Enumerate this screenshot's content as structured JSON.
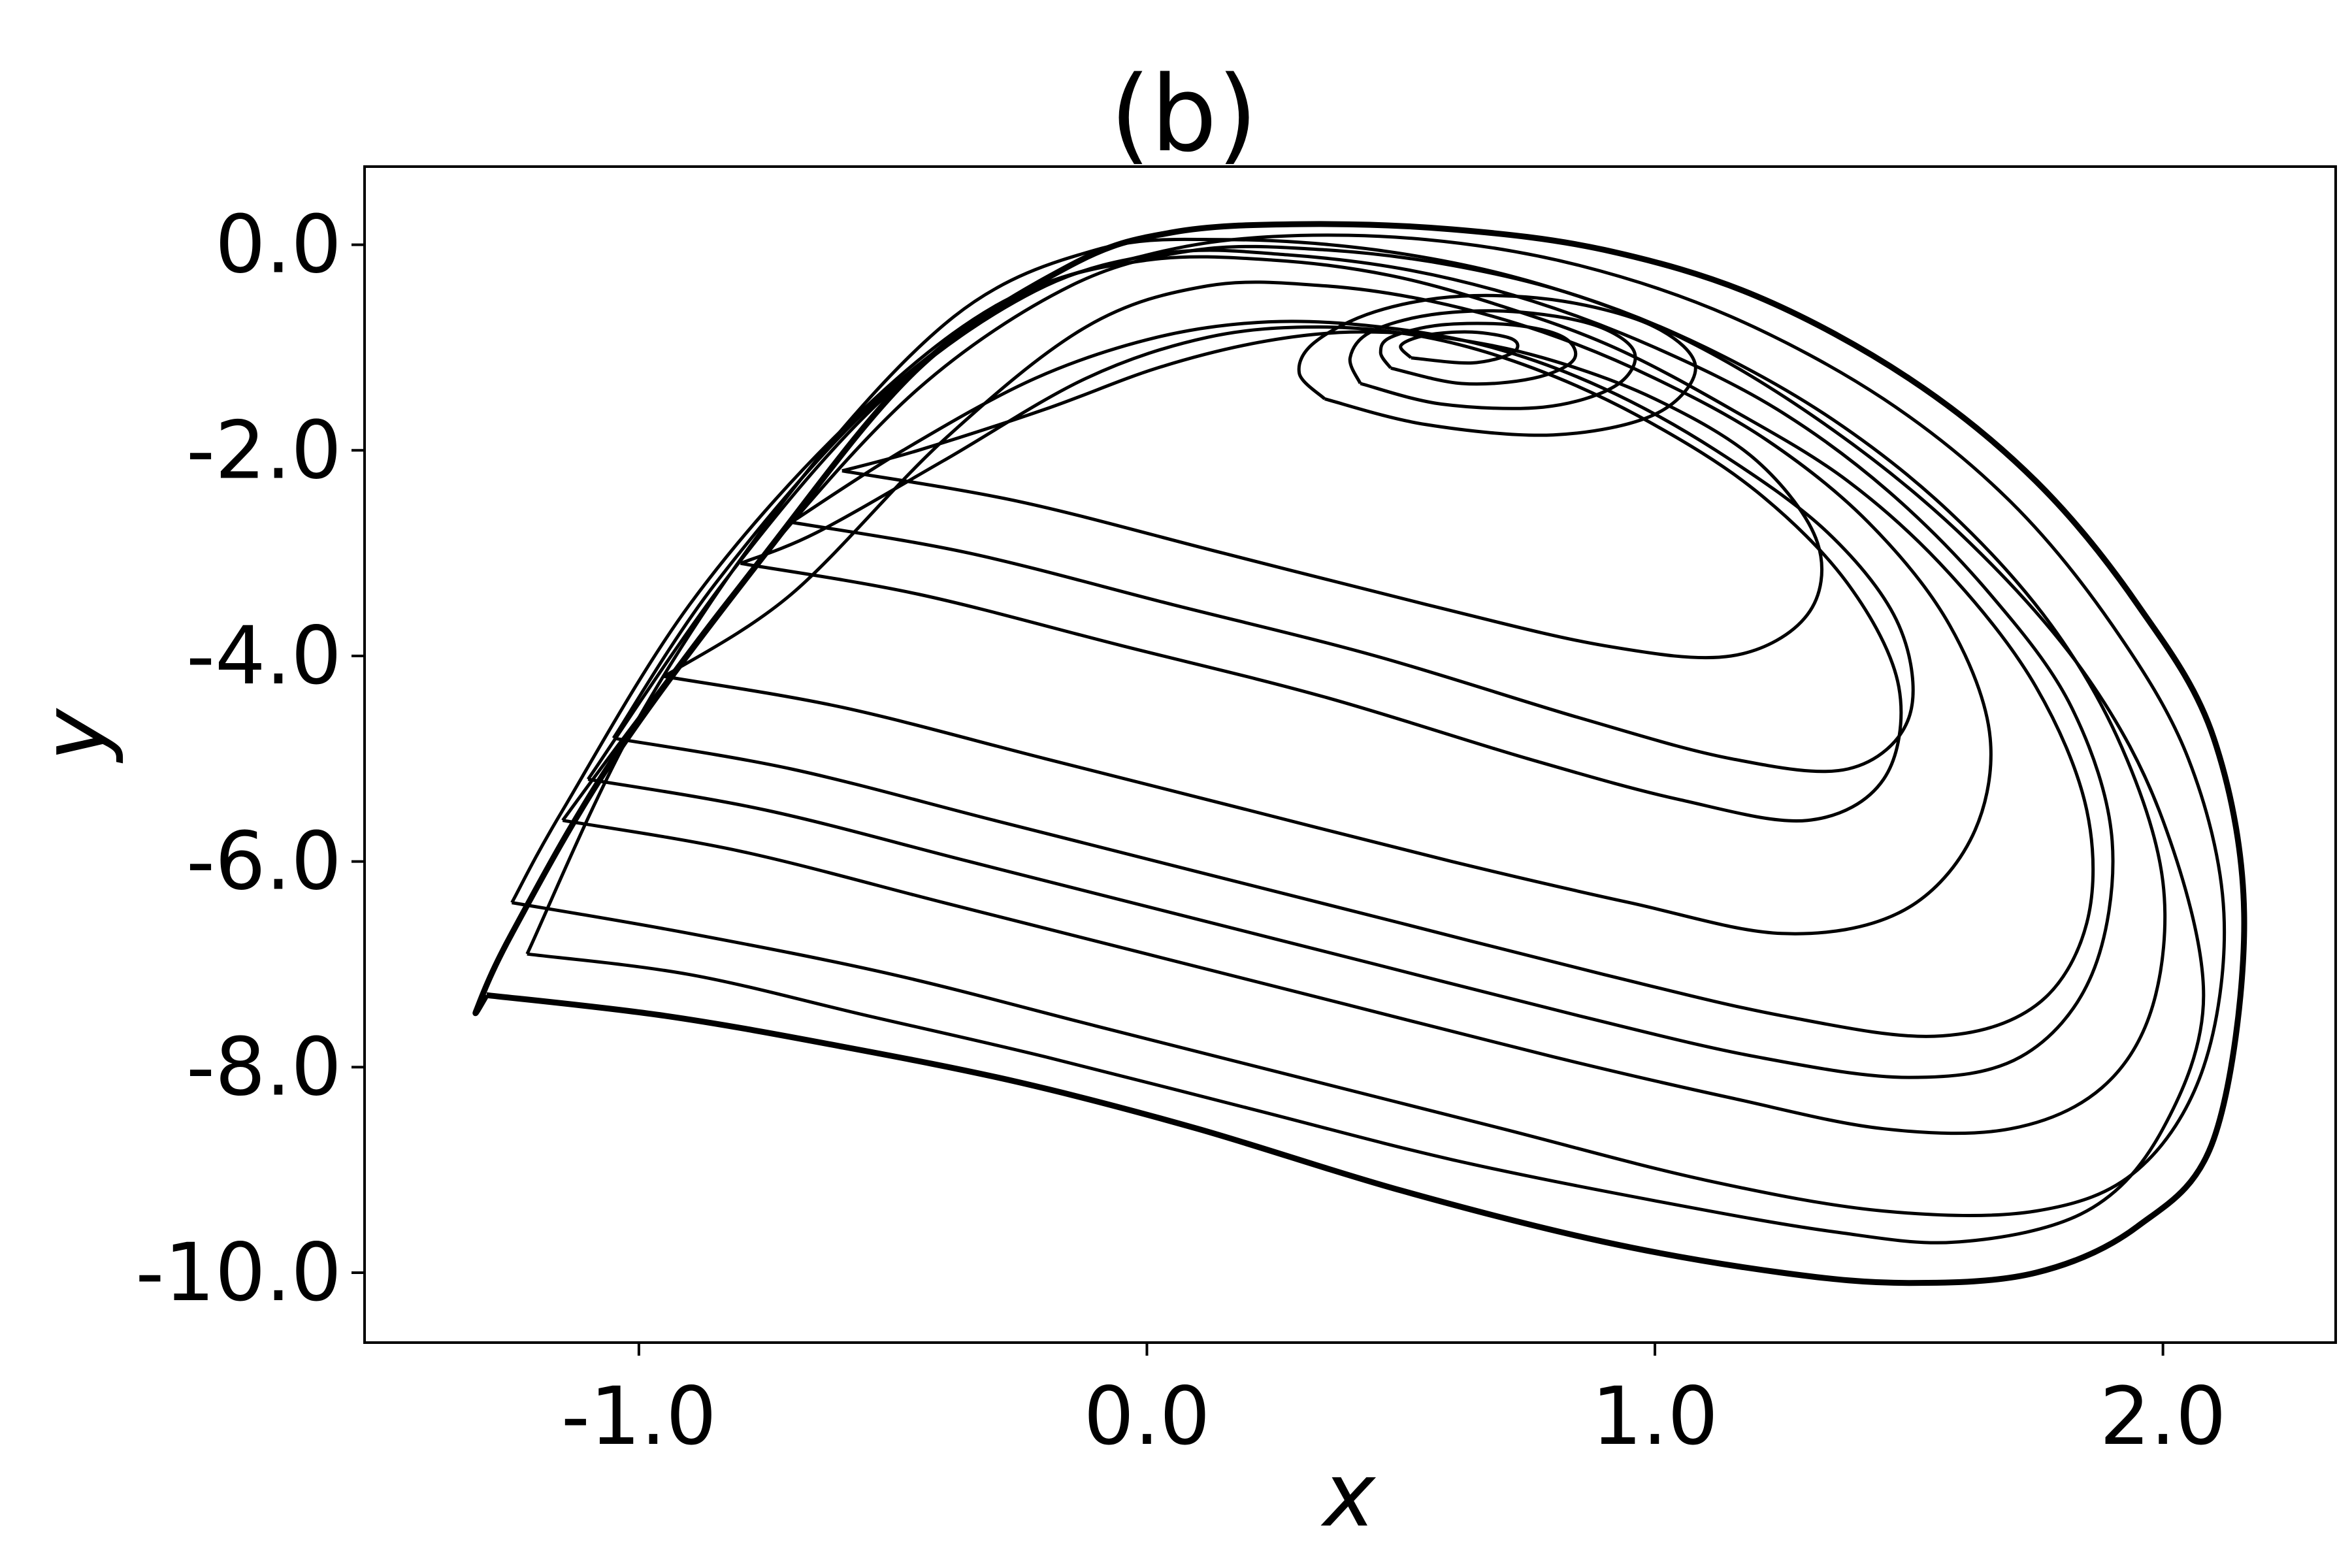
{
  "chart_data": {
    "type": "line",
    "title": "(b)",
    "xlabel": "x",
    "ylabel": "y",
    "xlim": [
      -1.54,
      2.34
    ],
    "ylim": [
      -10.68,
      0.76
    ],
    "x_ticks": [
      -1.0,
      0.0,
      1.0,
      2.0
    ],
    "x_tick_labels": [
      "-1.0",
      "0.0",
      "1.0",
      "2.0"
    ],
    "y_ticks": [
      0.0,
      -2.0,
      -4.0,
      -6.0,
      -8.0,
      -10.0
    ],
    "y_tick_labels": [
      "0.0",
      "-2.0",
      "-4.0",
      "-6.0",
      "-8.0",
      "-10.0"
    ],
    "grid": false,
    "legend": "none",
    "series_color": "#000000",
    "series": [
      {
        "x": [
          -1.3,
          -0.95,
          -0.6,
          -0.25,
          0.1,
          0.5,
          0.9,
          1.25,
          1.5,
          1.75,
          1.95,
          2.1,
          2.16,
          2.1,
          1.95,
          1.75,
          1.5,
          1.2,
          0.9,
          0.6,
          0.3,
          0.05,
          -0.15,
          -0.45,
          -0.75,
          -1.05,
          -1.25,
          -1.32,
          -1.3
        ],
        "y": [
          -7.3,
          -7.5,
          -7.8,
          -8.15,
          -8.6,
          -9.2,
          -9.7,
          -10.0,
          -10.1,
          -10.0,
          -9.55,
          -8.7,
          -6.6,
          -4.8,
          -3.5,
          -2.3,
          -1.3,
          -0.5,
          -0.05,
          0.15,
          0.2,
          0.12,
          -0.2,
          -1.2,
          -3.0,
          -5.0,
          -6.7,
          -7.45,
          -7.3
        ]
      },
      {
        "x": [
          -1.25,
          -0.9,
          -0.5,
          -0.1,
          0.3,
          0.7,
          1.1,
          1.45,
          1.75,
          1.95,
          2.08,
          2.12,
          2.05,
          1.9,
          1.7,
          1.45,
          1.15,
          0.85,
          0.55,
          0.25,
          0.0,
          -0.3,
          -0.6,
          -0.9,
          -1.15,
          -1.25
        ],
        "y": [
          -6.4,
          -6.7,
          -7.1,
          -7.6,
          -8.1,
          -8.6,
          -9.1,
          -9.4,
          -9.4,
          -9.0,
          -8.0,
          -6.5,
          -5.0,
          -3.7,
          -2.5,
          -1.5,
          -0.7,
          -0.2,
          0.05,
          0.08,
          -0.1,
          -0.6,
          -1.8,
          -3.5,
          -5.5,
          -6.4
        ]
      },
      {
        "x": [
          -1.15,
          -0.8,
          -0.4,
          0.0,
          0.4,
          0.8,
          1.15,
          1.45,
          1.7,
          1.88,
          1.98,
          2.0,
          1.92,
          1.78,
          1.58,
          1.35,
          1.1,
          0.85,
          0.6,
          0.35,
          0.1,
          -0.15,
          -0.45,
          -0.75,
          -1.0,
          -1.15
        ],
        "y": [
          -5.6,
          -5.9,
          -6.4,
          -6.9,
          -7.4,
          -7.9,
          -8.3,
          -8.6,
          -8.6,
          -8.2,
          -7.4,
          -6.2,
          -4.9,
          -3.7,
          -2.6,
          -1.7,
          -1.0,
          -0.5,
          -0.2,
          -0.05,
          -0.05,
          -0.4,
          -1.4,
          -3.0,
          -4.6,
          -5.6
        ]
      },
      {
        "x": [
          -1.05,
          -0.7,
          -0.3,
          0.1,
          0.5,
          0.9,
          1.25,
          1.55,
          1.75,
          1.85,
          1.85,
          1.75,
          1.58,
          1.38,
          1.15,
          0.92,
          0.7,
          0.48,
          0.25,
          0.0,
          -0.25,
          -0.55,
          -0.85,
          -1.05
        ],
        "y": [
          -4.8,
          -5.1,
          -5.6,
          -6.1,
          -6.6,
          -7.1,
          -7.5,
          -7.7,
          -7.4,
          -6.6,
          -5.5,
          -4.3,
          -3.2,
          -2.3,
          -1.6,
          -1.0,
          -0.6,
          -0.3,
          -0.15,
          -0.15,
          -0.5,
          -1.6,
          -3.3,
          -4.8
        ]
      },
      {
        "x": [
          -0.95,
          -0.6,
          -0.2,
          0.2,
          0.6,
          0.95,
          1.25,
          1.48,
          1.62,
          1.66,
          1.58,
          1.42,
          1.22,
          1.0,
          0.78,
          0.56,
          0.35,
          0.12,
          -0.12,
          -0.4,
          -0.7,
          -0.95
        ],
        "y": [
          -4.2,
          -4.5,
          -5.0,
          -5.5,
          -6.0,
          -6.4,
          -6.7,
          -6.5,
          -5.8,
          -4.8,
          -3.7,
          -2.7,
          -1.9,
          -1.3,
          -0.85,
          -0.55,
          -0.4,
          -0.4,
          -0.8,
          -1.9,
          -3.4,
          -4.2
        ]
      },
      {
        "x": [
          -0.8,
          -0.45,
          -0.05,
          0.35,
          0.75,
          1.05,
          1.3,
          1.45,
          1.48,
          1.38,
          1.2,
          0.98,
          0.76,
          0.55,
          0.34,
          0.12,
          -0.12,
          -0.4,
          -0.65,
          -0.8
        ],
        "y": [
          -3.1,
          -3.4,
          -3.9,
          -4.4,
          -5.0,
          -5.4,
          -5.6,
          -5.2,
          -4.3,
          -3.3,
          -2.4,
          -1.7,
          -1.2,
          -0.9,
          -0.8,
          -0.9,
          -1.3,
          -2.1,
          -2.8,
          -3.1
        ]
      },
      {
        "x": [
          -0.6,
          -0.25,
          0.15,
          0.55,
          0.9,
          1.15,
          1.3,
          1.32,
          1.2,
          1.0,
          0.78,
          0.58,
          0.4,
          0.22,
          0.02,
          -0.2,
          -0.45,
          -0.6
        ],
        "y": [
          -2.2,
          -2.5,
          -3.0,
          -3.5,
          -3.9,
          -4.0,
          -3.6,
          -2.9,
          -2.1,
          -1.5,
          -1.1,
          -0.9,
          -0.85,
          -0.95,
          -1.2,
          -1.6,
          -2.0,
          -2.2
        ]
      },
      {
        "x": [
          0.35,
          0.55,
          0.8,
          1.0,
          1.08,
          1.0,
          0.82,
          0.62,
          0.45,
          0.33,
          0.3,
          0.35
        ],
        "y": [
          -1.5,
          -1.75,
          -1.85,
          -1.65,
          -1.2,
          -0.8,
          -0.55,
          -0.5,
          -0.65,
          -0.95,
          -1.25,
          -1.5
        ]
      },
      {
        "x": [
          0.42,
          0.58,
          0.78,
          0.92,
          0.96,
          0.88,
          0.72,
          0.56,
          0.44,
          0.4,
          0.42
        ],
        "y": [
          -1.35,
          -1.55,
          -1.58,
          -1.38,
          -1.05,
          -0.78,
          -0.65,
          -0.68,
          -0.85,
          -1.1,
          -1.35
        ]
      },
      {
        "x": [
          0.48,
          0.62,
          0.76,
          0.84,
          0.82,
          0.72,
          0.58,
          0.48,
          0.46,
          0.48
        ],
        "y": [
          -1.2,
          -1.35,
          -1.3,
          -1.12,
          -0.9,
          -0.78,
          -0.78,
          -0.9,
          -1.05,
          -1.2
        ]
      },
      {
        "x": [
          0.52,
          0.64,
          0.72,
          0.72,
          0.64,
          0.55,
          0.5,
          0.52
        ],
        "y": [
          -1.1,
          -1.15,
          -1.05,
          -0.92,
          -0.85,
          -0.88,
          -0.98,
          -1.1
        ]
      },
      {
        "x": [
          -1.22,
          -0.9,
          -0.55,
          -0.2,
          0.2,
          0.6,
          1.0,
          1.35,
          1.6,
          1.85,
          2.0,
          2.08,
          2.0,
          1.85,
          1.62,
          1.35,
          1.05,
          0.75,
          0.45,
          0.15,
          -0.1,
          -0.38,
          -0.7,
          -1.0,
          -1.22
        ],
        "y": [
          -6.9,
          -7.1,
          -7.5,
          -7.9,
          -8.4,
          -8.9,
          -9.3,
          -9.6,
          -9.7,
          -9.4,
          -8.6,
          -7.3,
          -5.6,
          -4.2,
          -2.9,
          -1.8,
          -0.9,
          -0.35,
          -0.05,
          0.05,
          -0.05,
          -0.7,
          -2.4,
          -4.6,
          -6.9
        ]
      },
      {
        "x": [
          -1.1,
          -0.75,
          -0.35,
          0.05,
          0.45,
          0.85,
          1.2,
          1.5,
          1.72,
          1.86,
          1.9,
          1.82,
          1.66,
          1.46,
          1.24,
          1.0,
          0.76,
          0.52,
          0.28,
          0.04,
          -0.22,
          -0.52,
          -0.82,
          -1.1
        ],
        "y": [
          -5.2,
          -5.5,
          -6.0,
          -6.5,
          -7.0,
          -7.5,
          -7.9,
          -8.1,
          -7.9,
          -7.1,
          -5.8,
          -4.5,
          -3.4,
          -2.4,
          -1.6,
          -1.0,
          -0.55,
          -0.25,
          -0.1,
          -0.08,
          -0.45,
          -1.5,
          -3.2,
          -5.2
        ]
      },
      {
        "x": [
          -0.7,
          -0.35,
          0.05,
          0.45,
          0.85,
          1.15,
          1.38,
          1.5,
          1.48,
          1.34,
          1.12,
          0.9,
          0.68,
          0.46,
          0.24,
          0.02,
          -0.22,
          -0.48,
          -0.7
        ],
        "y": [
          -2.7,
          -3.0,
          -3.5,
          -4.0,
          -4.6,
          -5.0,
          -5.1,
          -4.6,
          -3.7,
          -2.8,
          -2.0,
          -1.4,
          -1.0,
          -0.8,
          -0.75,
          -0.9,
          -1.3,
          -2.0,
          -2.7
        ]
      }
    ]
  }
}
